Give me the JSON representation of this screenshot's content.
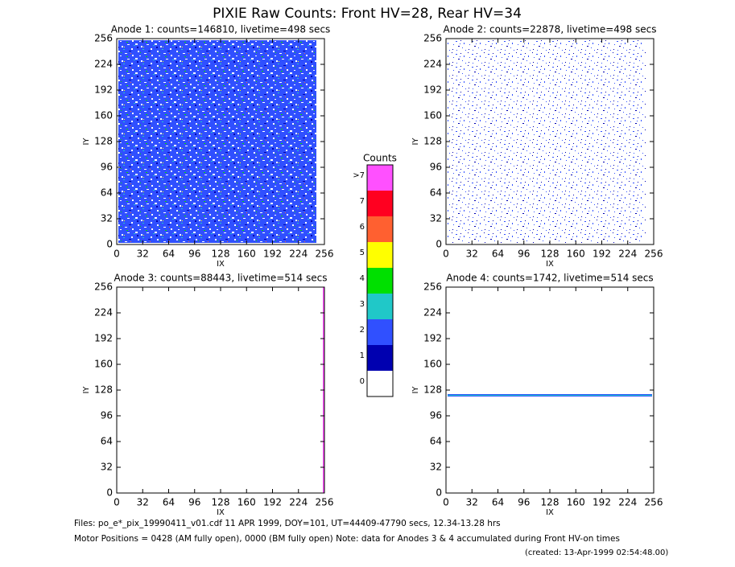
{
  "title": "PIXIE Raw Counts:  Front HV=28, Rear HV=34",
  "footer": [
    "Files: po_e*_pix_19990411_v01.cdf    11 APR 1999, DOY=101, UT=44409-47790 secs, 12.34-13.28 hrs",
    "Motor Positions = 0428 (AM fully open), 0000 (BM fully open)    Note: data for Anodes 3 & 4 accumulated during Front HV-on times",
    "(created: 13-Apr-1999 02:54:48.00)"
  ],
  "chart_data": [
    {
      "type": "heatmap",
      "title": "Anode 1: counts=146810, livetime=498 secs",
      "x_label": "IX",
      "y_label": "IY",
      "xlim": [
        0,
        256
      ],
      "ylim": [
        0,
        256
      ],
      "xticks": [
        0,
        32,
        64,
        96,
        128,
        160,
        192,
        224,
        256
      ],
      "yticks": [
        0,
        32,
        64,
        96,
        128,
        160,
        192,
        224,
        256
      ]
    },
    {
      "type": "heatmap",
      "title": "Anode 2: counts=22878, livetime=498 secs",
      "x_label": "IX",
      "y_label": "IY",
      "xlim": [
        0,
        256
      ],
      "ylim": [
        0,
        256
      ],
      "xticks": [
        0,
        32,
        64,
        96,
        128,
        160,
        192,
        224,
        256
      ],
      "yticks": [
        0,
        32,
        64,
        96,
        128,
        160,
        192,
        224,
        256
      ]
    },
    {
      "type": "heatmap",
      "title": "Anode 3: counts=88443, livetime=514 secs",
      "x_label": "IX",
      "y_label": "IY",
      "xlim": [
        0,
        256
      ],
      "ylim": [
        0,
        256
      ],
      "xticks": [
        0,
        32,
        64,
        96,
        128,
        160,
        192,
        224,
        256
      ],
      "yticks": [
        0,
        32,
        64,
        96,
        128,
        160,
        192,
        224,
        256
      ]
    },
    {
      "type": "heatmap",
      "title": "Anode 4: counts=1742, livetime=514 secs",
      "x_label": "IX",
      "y_label": "IY",
      "xlim": [
        0,
        256
      ],
      "ylim": [
        0,
        256
      ],
      "xticks": [
        0,
        32,
        64,
        96,
        128,
        160,
        192,
        224,
        256
      ],
      "yticks": [
        0,
        32,
        64,
        96,
        128,
        160,
        192,
        224,
        256
      ]
    },
    {
      "type": "colorbar",
      "title": "Counts",
      "categories": [
        "0",
        "1",
        "2",
        "3",
        "4",
        "5",
        "6",
        "7",
        ">7"
      ],
      "colors": [
        "#ffffff",
        "#0000b0",
        "#3050ff",
        "#20c8c8",
        "#00e000",
        "#ffff00",
        "#ff6030",
        "#ff0020",
        "#ff50ff"
      ]
    }
  ]
}
